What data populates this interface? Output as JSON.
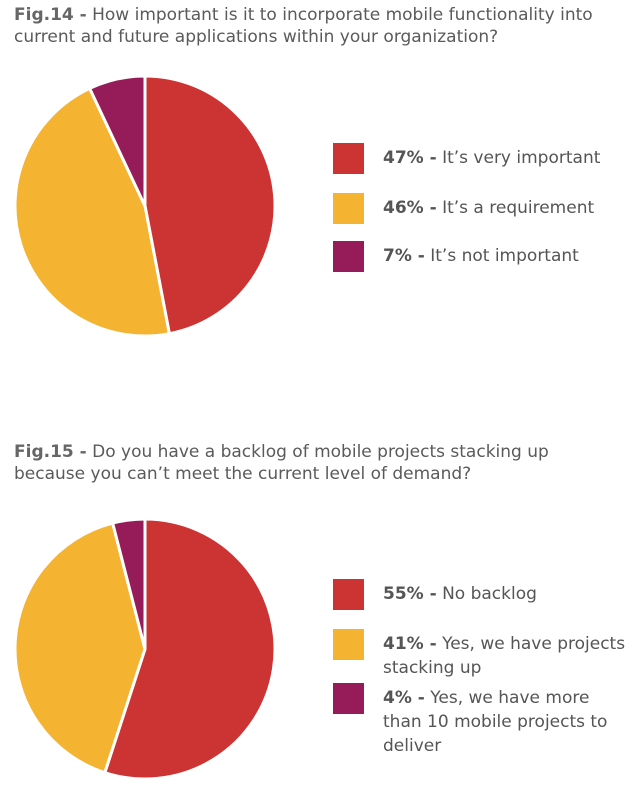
{
  "colors": {
    "red": "#cc3333",
    "yellow": "#f5b332",
    "purple": "#951c58"
  },
  "chart_data": [
    {
      "type": "pie",
      "title_prefix": "Fig.14 -",
      "title": "How important is it to incorporate mobile functionality into current and future applications within your organization?",
      "slices": [
        {
          "percent_label": "47% -",
          "label": "It’s very important",
          "value": 47,
          "color": "#cc3333"
        },
        {
          "percent_label": "46% -",
          "label": "It’s a requirement",
          "value": 46,
          "color": "#f5b332"
        },
        {
          "percent_label": "7% -",
          "label": "It’s not important",
          "value": 7,
          "color": "#951c58"
        }
      ]
    },
    {
      "type": "pie",
      "title_prefix": "Fig.15 -",
      "title": "Do you have a backlog of mobile projects stacking up because you can’t meet the current level of demand?",
      "slices": [
        {
          "percent_label": "55% -",
          "label": "No backlog",
          "value": 55,
          "color": "#cc3333"
        },
        {
          "percent_label": "41% -",
          "label": "Yes, we have projects stacking up",
          "value": 41,
          "color": "#f5b332"
        },
        {
          "percent_label": "4% -",
          "label": "Yes, we have more than 10 mobile projects to deliver",
          "value": 4,
          "color": "#951c58"
        }
      ]
    }
  ]
}
